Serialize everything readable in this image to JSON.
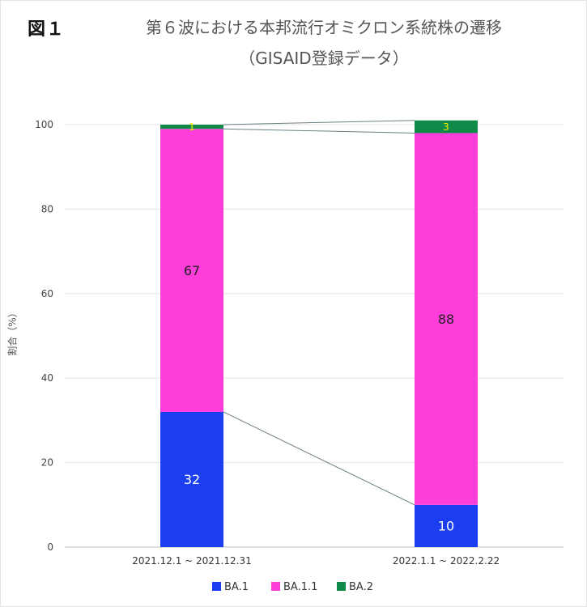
{
  "figure": {
    "label": "図１",
    "title_line1": "第６波における本邦流行オミクロン系統株の遷移",
    "title_line2": "（GISAID登録データ）"
  },
  "chart_data": {
    "type": "bar",
    "stacked": true,
    "categories": [
      "2021.12.1 ~ 2021.12.31",
      "2022.1.1 ~ 2022.2.22"
    ],
    "series": [
      {
        "name": "BA.1",
        "values": [
          32,
          10
        ],
        "color": "#1b3ff0",
        "label_color": "#ffffff"
      },
      {
        "name": "BA.1.1",
        "values": [
          67,
          88
        ],
        "color": "#ff3ddb",
        "label_color": "#222222"
      },
      {
        "name": "BA.2",
        "values": [
          1,
          3
        ],
        "color": "#108a48",
        "label_color": "#f5f000"
      }
    ],
    "ylabel": "割合（%）",
    "ylim": [
      0,
      100
    ],
    "yticks": [
      0,
      20,
      40,
      60,
      80,
      100
    ],
    "grid": true,
    "legend": "bottom",
    "connector_lines": true
  }
}
